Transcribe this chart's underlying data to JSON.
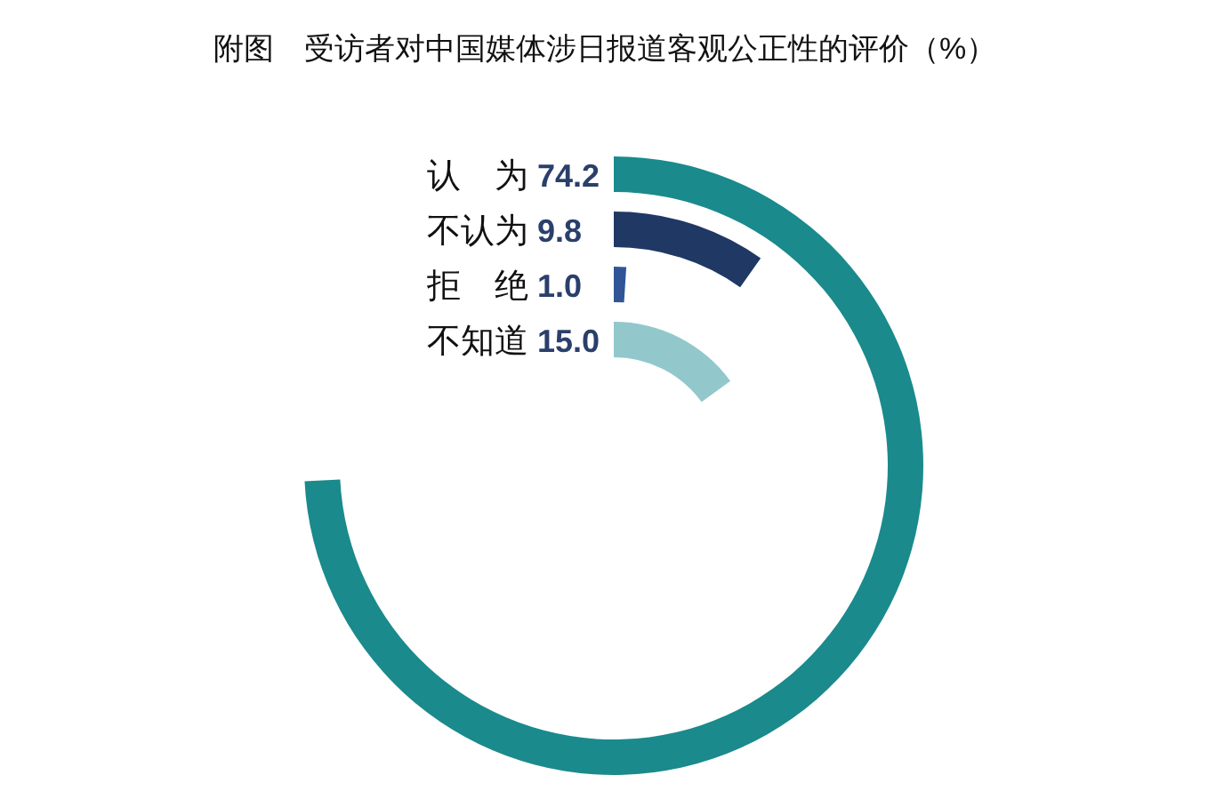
{
  "chart_data": {
    "type": "other",
    "title": "附图　受访者对中国媒体涉日报道客观公正性的评价（%）",
    "categories": [
      "认　为",
      "不认为",
      "拒　绝",
      "不知道"
    ],
    "values": [
      74.2,
      9.8,
      1.0,
      15.0
    ],
    "colors": [
      "#1a8a8c",
      "#1f3864",
      "#2f5597",
      "#92c8cc"
    ],
    "value_labels": [
      "74.2",
      "9.8",
      "1.0",
      "15.0"
    ]
  }
}
